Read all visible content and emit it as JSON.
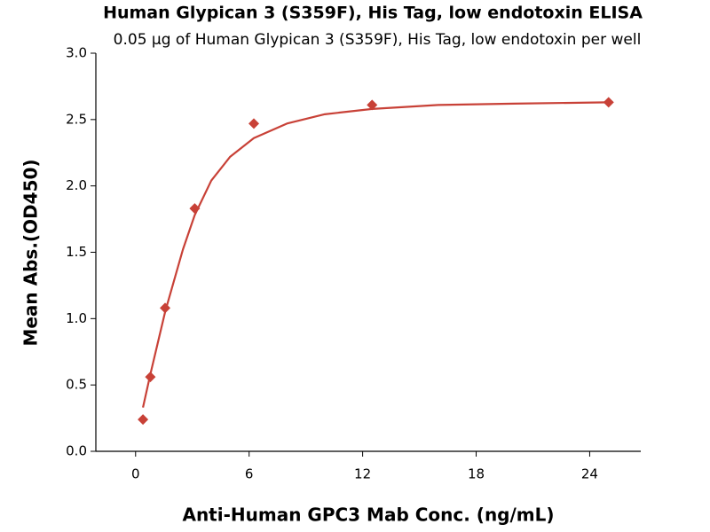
{
  "chart_data": {
    "type": "scatter",
    "title": "Human Glypican 3 (S359F), His Tag, low endotoxin ELISA",
    "subtitle": "0.05 μg of Human Glypican 3 (S359F), His Tag, low endotoxin per well",
    "x_label": "Anti-Human GPC3 Mab Conc. (ng/mL)",
    "y_label": "Mean Abs.(OD450)",
    "series": [
      {
        "color": "#c84137",
        "x": [
          0.39,
          0.78,
          1.56,
          3.125,
          6.25,
          12.5,
          25
        ],
        "values": [
          0.24,
          0.56,
          1.08,
          1.83,
          2.47,
          2.61,
          2.63
        ]
      },
      {
        "color": "#c84137",
        "x": [
          0.39,
          0.78,
          1.56,
          2.5,
          3.125,
          4,
          5,
          6.25,
          8,
          10,
          12.5,
          16,
          20,
          25
        ],
        "values": [
          0.33,
          0.58,
          1.05,
          1.52,
          1.78,
          2.04,
          2.22,
          2.36,
          2.47,
          2.54,
          2.58,
          2.61,
          2.62,
          2.63
        ]
      }
    ],
    "xlim": [
      -2.1,
      26.7
    ],
    "xticks": [
      0,
      6,
      12,
      18,
      24
    ],
    "ylim": [
      0,
      3.0
    ],
    "yticks": [
      {
        "value": 0,
        "label": "0.0"
      },
      0.5,
      {
        "value": 1,
        "label": "1.0"
      },
      1.5,
      {
        "value": 2,
        "label": "2.0"
      },
      2.5,
      {
        "value": 3,
        "label": "3.0"
      }
    ]
  }
}
